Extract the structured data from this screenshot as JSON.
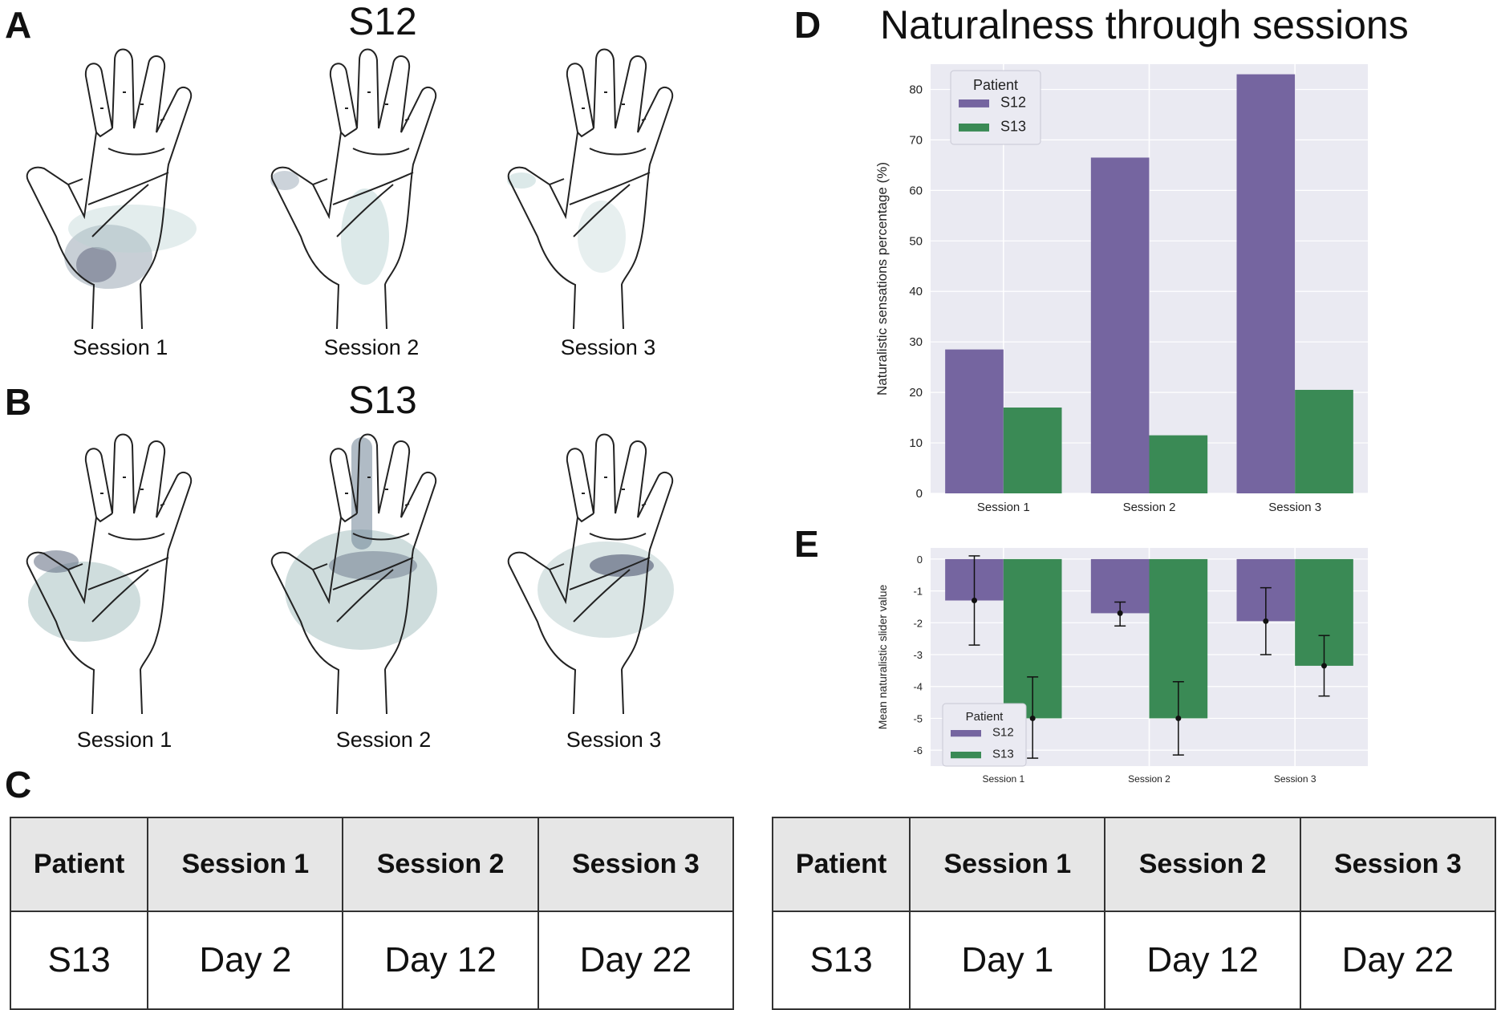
{
  "panels": {
    "a": "A",
    "b": "B",
    "c": "C",
    "d": "D",
    "e": "E"
  },
  "hands": {
    "s12": {
      "title": "S12",
      "sessions": [
        "Session 1",
        "Session 2",
        "Session 3"
      ]
    },
    "s13": {
      "title": "S13",
      "sessions": [
        "Session 1",
        "Session 2",
        "Session 3"
      ]
    }
  },
  "tables": [
    {
      "headers": [
        "Patient",
        "Session 1",
        "Session 2",
        "Session 3"
      ],
      "row": [
        "S13",
        "Day 2",
        "Day 12",
        "Day 22"
      ]
    },
    {
      "headers": [
        "Patient",
        "Session 1",
        "Session 2",
        "Session 3"
      ],
      "row": [
        "S13",
        "Day 1",
        "Day 12",
        "Day 22"
      ]
    }
  ],
  "colors": {
    "s12": "#7565a0",
    "s13": "#3a8a55",
    "plot_bg": "#eaeaf2"
  },
  "chart_data": [
    {
      "type": "bar",
      "title": "Naturalness through sessions",
      "categories": [
        "Session 1",
        "Session 2",
        "Session 3"
      ],
      "series": [
        {
          "name": "S12",
          "values": [
            28.5,
            66.5,
            83
          ]
        },
        {
          "name": "S13",
          "values": [
            17,
            11.5,
            20.5
          ]
        }
      ],
      "xlabel": "",
      "ylabel": "Naturalistic sensations percentage (%)",
      "ylim": [
        0,
        85
      ],
      "yticks": [
        0,
        10,
        20,
        30,
        40,
        50,
        60,
        70,
        80
      ],
      "legend": {
        "title": "Patient",
        "placement": "top-left"
      }
    },
    {
      "type": "bar",
      "title": "",
      "categories": [
        "Session 1",
        "Session 2",
        "Session 3"
      ],
      "series": [
        {
          "name": "S12",
          "values": [
            -1.3,
            -1.7,
            -1.95
          ],
          "err_low": [
            -2.7,
            -2.1,
            -3.0
          ],
          "err_high": [
            0.1,
            -1.35,
            -0.9
          ]
        },
        {
          "name": "S13",
          "values": [
            -5.0,
            -5.0,
            -3.35
          ],
          "err_low": [
            -6.25,
            -6.15,
            -4.3
          ],
          "err_high": [
            -3.7,
            -3.85,
            -2.4
          ]
        }
      ],
      "xlabel": "",
      "ylabel": "Mean naturalistic slider value",
      "ylim": [
        -6.5,
        0.35
      ],
      "yticks": [
        0,
        -1,
        -2,
        -3,
        -4,
        -5,
        -6
      ],
      "legend": {
        "title": "Patient",
        "placement": "bottom-left"
      }
    }
  ]
}
